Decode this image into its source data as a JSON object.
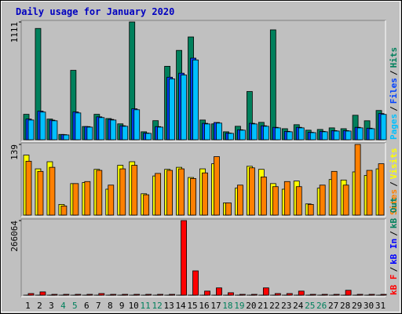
{
  "legend_separator": "/",
  "chart_data": [
    {
      "type": "bar",
      "title": "Daily usage for January 2020",
      "ylim": [
        0,
        1111
      ],
      "yticks": [
        1111
      ],
      "series": [
        {
          "name": "Hits",
          "color": "#00805c",
          "values": [
            240,
            1050,
            195,
            50,
            655,
            125,
            240,
            200,
            150,
            1111,
            75,
            180,
            693,
            843,
            970,
            186,
            150,
            75,
            127,
            455,
            164,
            1037,
            104,
            142,
            90,
            97,
            112,
            104,
            231,
            179,
            276
          ]
        },
        {
          "name": "Files",
          "color": "#0040ff",
          "values": [
            195,
            270,
            185,
            48,
            262,
            124,
            216,
            192,
            132,
            292,
            63,
            124,
            590,
            628,
            770,
            155,
            163,
            63,
            94,
            155,
            132,
            117,
            79,
            117,
            70,
            79,
            86,
            86,
            117,
            109,
            247
          ]
        },
        {
          "name": "Pages",
          "color": "#00c0ff",
          "values": [
            186,
            261,
            179,
            45,
            253,
            119,
            209,
            186,
            127,
            283,
            60,
            119,
            574,
            611,
            753,
            149,
            157,
            60,
            90,
            149,
            127,
            112,
            75,
            112,
            67,
            75,
            82,
            82,
            112,
            104,
            239
          ]
        }
      ]
    },
    {
      "type": "bar",
      "ylim": [
        0,
        139
      ],
      "yticks": [
        139
      ],
      "series": [
        {
          "name": "Visits",
          "color": "#ffff00",
          "values": [
            118,
            91,
            105,
            21,
            62,
            64,
            90,
            51,
            98,
            105,
            42,
            77,
            90,
            94,
            74,
            91,
            101,
            24,
            53,
            96,
            90,
            62,
            51,
            67,
            22,
            53,
            70,
            69,
            85,
            78,
            91
          ]
        },
        {
          "name": "Sites",
          "color": "#ff8000",
          "values": [
            106,
            86,
            94,
            18,
            62,
            66,
            88,
            59,
            91,
            98,
            40,
            82,
            88,
            91,
            72,
            83,
            115,
            24,
            59,
            93,
            75,
            56,
            66,
            56,
            21,
            59,
            86,
            59,
            139,
            88,
            101
          ]
        }
      ]
    },
    {
      "type": "bar",
      "ylim": [
        0,
        266064
      ],
      "yticks": [
        266064
      ],
      "categories": [
        "1",
        "2",
        "3",
        "4",
        "5",
        "6",
        "7",
        "8",
        "9",
        "10",
        "11",
        "12",
        "13",
        "14",
        "15",
        "16",
        "17",
        "18",
        "19",
        "20",
        "21",
        "22",
        "23",
        "24",
        "25",
        "26",
        "27",
        "28",
        "29",
        "30",
        "31"
      ],
      "category_colors": [
        "#000000",
        "#000000",
        "#000000",
        "#00805c",
        "#00805c",
        "#000000",
        "#000000",
        "#000000",
        "#000000",
        "#000000",
        "#00805c",
        "#00805c",
        "#000000",
        "#000000",
        "#000000",
        "#000000",
        "#000000",
        "#00805c",
        "#00805c",
        "#000000",
        "#000000",
        "#000000",
        "#000000",
        "#000000",
        "#00805c",
        "#00805c",
        "#000000",
        "#000000",
        "#000000",
        "#000000",
        "#000000"
      ],
      "series": [
        {
          "name": "kB Out",
          "color": "#00805c",
          "values": [
            0,
            0,
            0,
            0,
            0,
            0,
            0,
            0,
            0,
            0,
            0,
            0,
            0,
            0,
            0,
            0,
            0,
            0,
            0,
            0,
            0,
            0,
            0,
            0,
            0,
            0,
            0,
            0,
            0,
            0,
            0
          ]
        },
        {
          "name": "kB In",
          "color": "#0000ff",
          "values": [
            0,
            0,
            0,
            0,
            0,
            0,
            0,
            0,
            0,
            0,
            0,
            0,
            0,
            0,
            0,
            0,
            0,
            0,
            0,
            0,
            0,
            0,
            0,
            0,
            0,
            0,
            0,
            0,
            0,
            0,
            0
          ]
        },
        {
          "name": "kB F",
          "color": "#ff0000",
          "values": [
            5800,
            11600,
            2900,
            2900,
            2900,
            2900,
            5800,
            2900,
            2900,
            2900,
            2900,
            2900,
            2900,
            266064,
            86760,
            14500,
            26000,
            8700,
            2900,
            2900,
            26000,
            5800,
            5800,
            14500,
            2900,
            2900,
            2900,
            17400,
            2900,
            2900,
            2900
          ]
        }
      ]
    }
  ]
}
